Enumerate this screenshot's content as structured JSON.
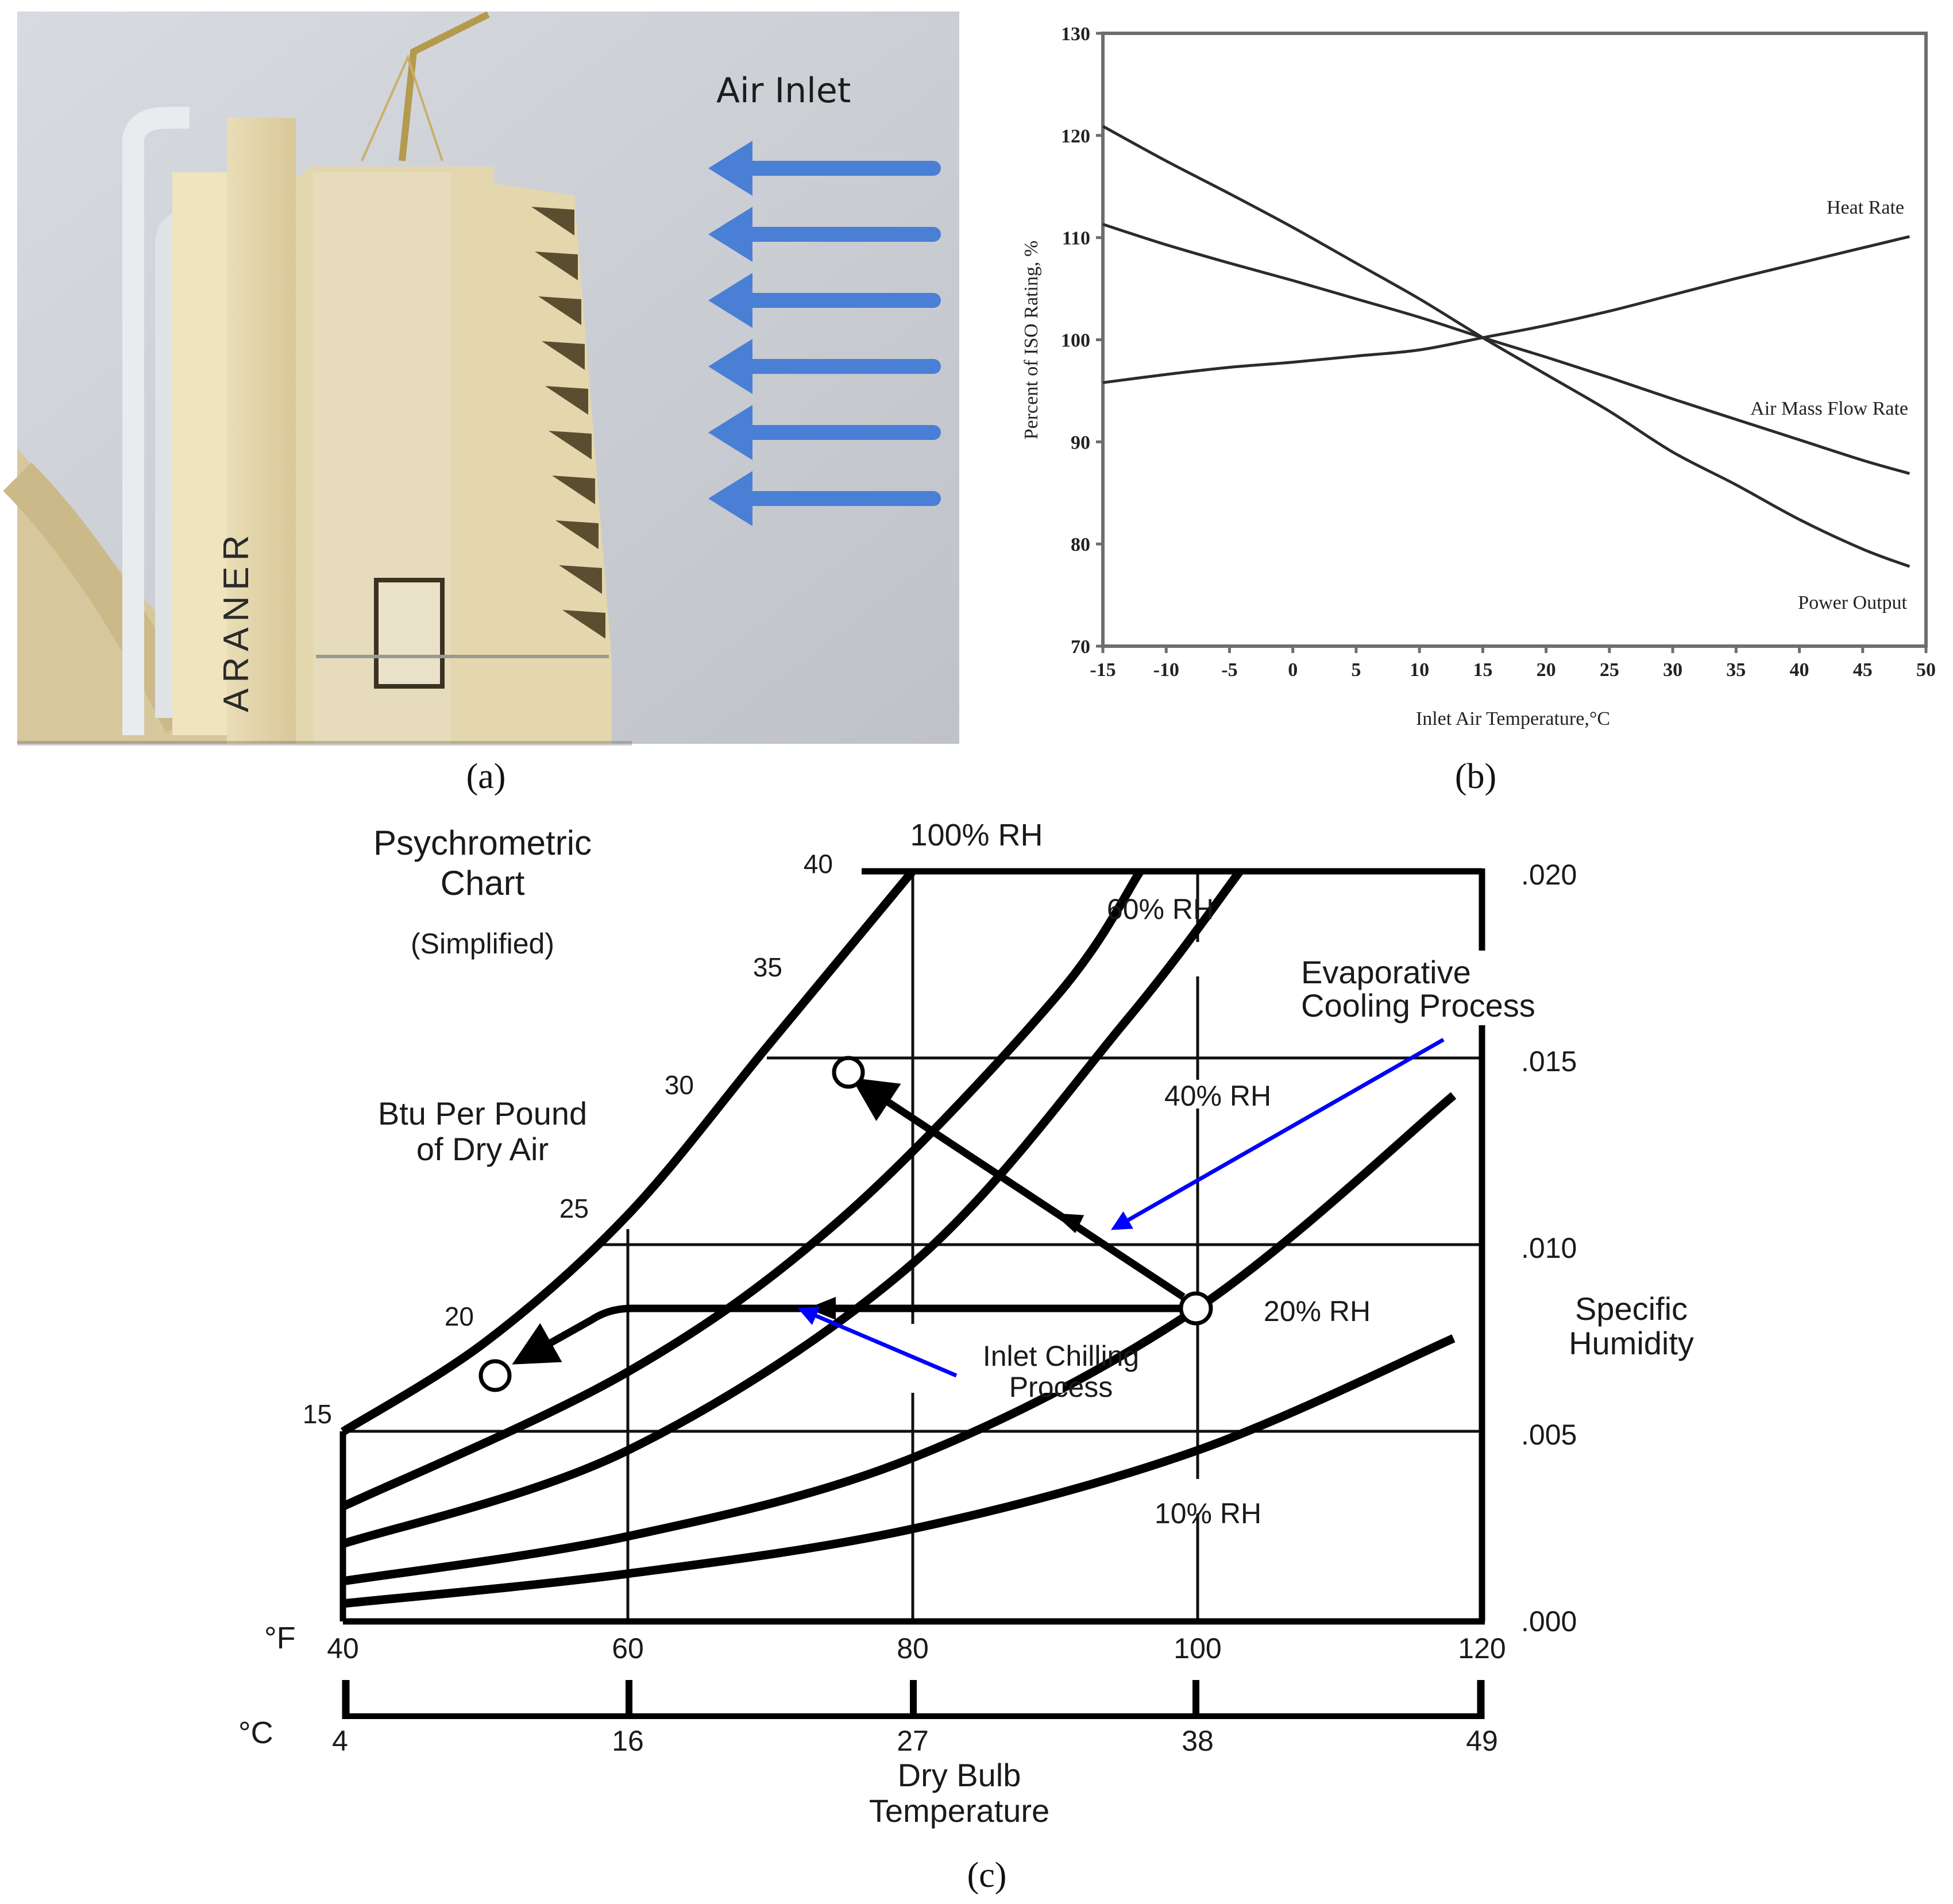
{
  "figure": {
    "captions": {
      "a": "(a)",
      "b": "(b)",
      "c": "(c)"
    }
  },
  "panel_a": {
    "title": "Air Inlet",
    "brand_text": "ARANER",
    "arrow_count": 6,
    "arrow_color": "#4a7fd6",
    "sky_color": "#c9ccd2",
    "building_color": "#e2d3a6"
  },
  "chart_data": [
    {
      "id": "b",
      "type": "line",
      "title": "",
      "xlabel": "Inlet Air Temperature,°C",
      "ylabel": "Percent of ISO Rating, %",
      "xlim": [
        -15,
        50
      ],
      "ylim": [
        70,
        130
      ],
      "xticks": [
        "-15",
        "-10",
        "-5",
        "0",
        "5",
        "10",
        "15",
        "20",
        "25",
        "30",
        "35",
        "40",
        "45",
        "50"
      ],
      "yticks": [
        "70",
        "80",
        "90",
        "100",
        "110",
        "120",
        "130"
      ],
      "grid": false,
      "x": [
        -15,
        -10,
        -5,
        0,
        5,
        10,
        15,
        20,
        25,
        30,
        35,
        40,
        45,
        48.7
      ],
      "series": [
        {
          "name": "Heat Rate",
          "values": [
            95.8,
            96.6,
            97.3,
            97.8,
            98.4,
            99.0,
            100.2,
            101.4,
            102.8,
            104.4,
            106.0,
            107.5,
            109.0,
            110.1
          ]
        },
        {
          "name": "Air Mass Flow Rate",
          "values": [
            111.3,
            109.3,
            107.5,
            105.8,
            104.0,
            102.2,
            100.2,
            98.3,
            96.3,
            94.2,
            92.2,
            90.2,
            88.2,
            86.9
          ]
        },
        {
          "name": "Power Output",
          "values": [
            120.9,
            117.5,
            114.3,
            111.0,
            107.5,
            104.0,
            100.2,
            96.6,
            93.0,
            89.0,
            85.8,
            82.4,
            79.5,
            77.8
          ]
        }
      ],
      "annotations": [
        {
          "text": "Heat Rate",
          "x": 46.5,
          "y": 112.7
        },
        {
          "text": "Air Mass Flow Rate",
          "x": 44,
          "y": 92.7
        },
        {
          "text": "Power Output",
          "x": 44.5,
          "y": 81.1
        }
      ]
    },
    {
      "id": "c",
      "type": "line",
      "title": "Psychrometric Chart",
      "subtitle": "(Simplified)",
      "xlabel": "Dry Bulb Temperature",
      "ylabel": "Specific Humidity",
      "enthalpy_label": "Btu Per Pound of Dry Air",
      "xlim_F": [
        40,
        120
      ],
      "ylim": [
        0.0,
        0.02
      ],
      "xticks_F": [
        "40",
        "60",
        "80",
        "100",
        "120"
      ],
      "xticks_C": [
        "4",
        "16",
        "27",
        "38",
        "49"
      ],
      "yticks": [
        ".000",
        ".005",
        ".010",
        ".015",
        ".020"
      ],
      "enthalpy_ticks": [
        "15",
        "20",
        "25",
        "30",
        "35",
        "40"
      ],
      "unit_F": "°F",
      "unit_C": "°C",
      "grid": true,
      "rh_curves": [
        {
          "name": "100% RH",
          "points_F_w": [
            [
              40,
              0.005
            ],
            [
              50,
              0.0074
            ],
            [
              60,
              0.0108
            ],
            [
              70,
              0.0154
            ],
            [
              80,
              0.02
            ]
          ]
        },
        {
          "name": "60% RH",
          "points_F_w": [
            [
              40,
              0.003
            ],
            [
              60,
              0.0066
            ],
            [
              75,
              0.0107
            ],
            [
              90,
              0.0166
            ],
            [
              96,
              0.02
            ]
          ]
        },
        {
          "name": "40% RH",
          "points_F_w": [
            [
              40,
              0.002
            ],
            [
              60,
              0.0045
            ],
            [
              80,
              0.0095
            ],
            [
              95,
              0.016
            ],
            [
              103,
              0.02
            ]
          ]
        },
        {
          "name": "20% RH",
          "points_F_w": [
            [
              40,
              0.001
            ],
            [
              60,
              0.0022
            ],
            [
              80,
              0.0043
            ],
            [
              100,
              0.0083
            ],
            [
              118,
              0.014
            ]
          ]
        },
        {
          "name": "10% RH",
          "points_F_w": [
            [
              40,
              0.0004
            ],
            [
              60,
              0.0012
            ],
            [
              80,
              0.0024
            ],
            [
              100,
              0.0045
            ],
            [
              118,
              0.0075
            ]
          ]
        }
      ],
      "rh_labels": [
        "100% RH",
        "60% RH",
        "40% RH",
        "20% RH",
        "10% RH"
      ],
      "processes": [
        {
          "name": "Inlet Chilling Process",
          "from": [
            100,
            0.0083
          ],
          "to": [
            51,
            0.0062
          ]
        },
        {
          "name": "Evaporative Cooling Process",
          "from": [
            100,
            0.0083
          ],
          "to": [
            76,
            0.0145
          ]
        }
      ],
      "annotation_color": "#0000ff"
    }
  ],
  "panel_b": {
    "xlabel": "Inlet Air Temperature,°C",
    "ylabel": "Percent of ISO Rating, %",
    "labels": {
      "heat_rate": "Heat Rate",
      "air_mass": "Air Mass Flow Rate",
      "power": "Power Output"
    },
    "xticks": [
      "-15",
      "-10",
      "-5",
      "0",
      "5",
      "10",
      "15",
      "20",
      "25",
      "30",
      "35",
      "40",
      "45",
      "50"
    ],
    "yticks": [
      "70",
      "80",
      "90",
      "100",
      "110",
      "120",
      "130"
    ]
  },
  "panel_c": {
    "title_line1": "Psychrometric",
    "title_line2": "Chart",
    "subtitle": "(Simplified)",
    "enthalpy_line1": "Btu Per Pound",
    "enthalpy_line2": "of Dry Air",
    "enthalpy_ticks": [
      "15",
      "20",
      "25",
      "30",
      "35",
      "40"
    ],
    "rh": {
      "r100": "100% RH",
      "r60": "60% RH",
      "r40": "40% RH",
      "r20": "20% RH",
      "r10": "10% RH"
    },
    "evap_line1": "Evaporative",
    "evap_line2": "Cooling Process",
    "chill_line1": "Inlet Chilling",
    "chill_line2": "Process",
    "sh_line1": "Specific",
    "sh_line2": "Humidity",
    "yticks": [
      ".020",
      ".015",
      ".010",
      ".005",
      ".000"
    ],
    "unit_F": "°F",
    "unit_C": "°C",
    "xticks_F": [
      "40",
      "60",
      "80",
      "100",
      "120"
    ],
    "xticks_C": [
      "4",
      "16",
      "27",
      "38",
      "49"
    ],
    "xlabel_line1": "Dry Bulb",
    "xlabel_line2": "Temperature"
  }
}
